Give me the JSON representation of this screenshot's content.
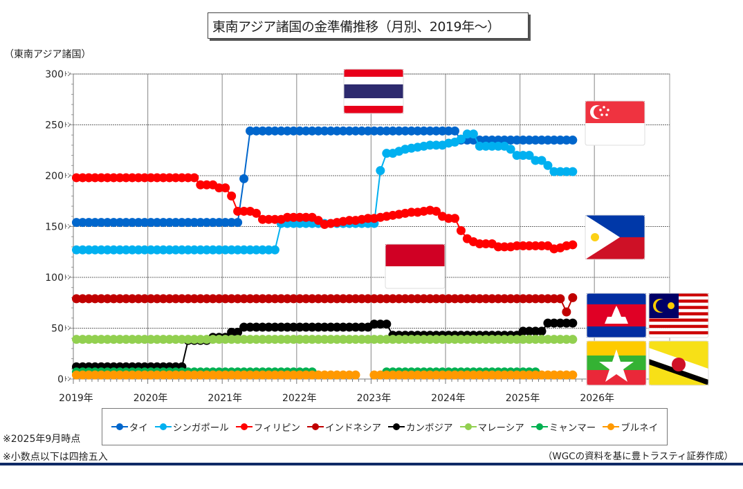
{
  "chart_data": {
    "type": "line",
    "title": "東南アジア諸国の金準備推移（月別、2019年～）",
    "ylabel": "（東南アジア諸国）",
    "y_unit": "ﾄﾝ",
    "ylim": [
      0,
      300
    ],
    "yticks": [
      "0",
      "50",
      "100",
      "150",
      "200",
      "250",
      "300"
    ],
    "xlim": [
      "2019-01",
      "2027-01"
    ],
    "xticks": [
      "2019年",
      "2020年",
      "2021年",
      "2022年",
      "2023年",
      "2024年",
      "2025年",
      "2026年"
    ],
    "x_start": "2019-01",
    "x_end": "2025-09",
    "x_frequency": "monthly",
    "grid": true,
    "legend_placement": "bottom",
    "series": [
      {
        "name": "タイ",
        "color": "#0066cc",
        "values": [
          154,
          154,
          154,
          154,
          154,
          154,
          154,
          154,
          154,
          154,
          154,
          154,
          154,
          154,
          154,
          154,
          154,
          154,
          154,
          154,
          154,
          154,
          154,
          154,
          154,
          154,
          154,
          197,
          244,
          244,
          244,
          244,
          244,
          244,
          244,
          244,
          244,
          244,
          244,
          244,
          244,
          244,
          244,
          244,
          244,
          244,
          244,
          244,
          244,
          244,
          244,
          244,
          244,
          244,
          244,
          244,
          244,
          244,
          244,
          244,
          244,
          244,
          235,
          235,
          235,
          235,
          235,
          235,
          235,
          235,
          235,
          235,
          235,
          235,
          235,
          235,
          235,
          235,
          235,
          235,
          235
        ]
      },
      {
        "name": "シンガポール",
        "color": "#00b0f0",
        "values": [
          127,
          127,
          127,
          127,
          127,
          127,
          127,
          127,
          127,
          127,
          127,
          127,
          127,
          127,
          127,
          127,
          127,
          127,
          127,
          127,
          127,
          127,
          127,
          127,
          127,
          127,
          127,
          127,
          127,
          127,
          127,
          127,
          127,
          153,
          153,
          153,
          153,
          153,
          153,
          153,
          153,
          153,
          153,
          153,
          153,
          153,
          153,
          153,
          153,
          205,
          222,
          222,
          224,
          226,
          227,
          228,
          229,
          230,
          230,
          230,
          232,
          233,
          236,
          241,
          241,
          229,
          229,
          229,
          229,
          229,
          226,
          220,
          220,
          220,
          215,
          215,
          210,
          204,
          204,
          204,
          204
        ]
      },
      {
        "name": "フィリピン",
        "color": "#ff0000",
        "values": [
          198,
          198,
          198,
          198,
          198,
          198,
          198,
          198,
          198,
          198,
          198,
          198,
          198,
          198,
          198,
          198,
          198,
          198,
          198,
          198,
          191,
          191,
          191,
          188,
          188,
          180,
          165,
          165,
          165,
          163,
          157,
          157,
          157,
          157,
          159,
          159,
          159,
          159,
          159,
          156,
          152,
          153,
          154,
          155,
          156,
          156,
          157,
          158,
          158,
          159,
          160,
          161,
          162,
          163,
          164,
          164,
          165,
          166,
          165,
          160,
          158,
          158,
          146,
          138,
          135,
          133,
          133,
          133,
          130,
          130,
          130,
          131,
          131,
          131,
          131,
          131,
          131,
          128,
          129,
          131,
          132
        ]
      },
      {
        "name": "インドネシア",
        "color": "#c00000",
        "values": [
          79,
          79,
          79,
          79,
          79,
          79,
          79,
          79,
          79,
          79,
          79,
          79,
          79,
          79,
          79,
          79,
          79,
          79,
          79,
          79,
          79,
          79,
          79,
          79,
          79,
          79,
          79,
          79,
          79,
          79,
          79,
          79,
          79,
          79,
          79,
          79,
          79,
          79,
          79,
          79,
          79,
          79,
          79,
          79,
          79,
          79,
          79,
          79,
          79,
          79,
          79,
          79,
          79,
          79,
          79,
          79,
          79,
          79,
          79,
          79,
          79,
          79,
          79,
          79,
          79,
          79,
          79,
          79,
          79,
          79,
          79,
          79,
          79,
          79,
          79,
          79,
          79,
          79,
          79,
          66,
          80
        ]
      },
      {
        "name": "カンボジア",
        "color": "#000000",
        "values": [
          12,
          12,
          12,
          12,
          12,
          12,
          12,
          12,
          12,
          12,
          12,
          12,
          12,
          12,
          12,
          12,
          12,
          12,
          38,
          38,
          38,
          38,
          41,
          41,
          41,
          46,
          46,
          51,
          51,
          51,
          51,
          51,
          51,
          51,
          51,
          51,
          51,
          51,
          51,
          51,
          51,
          51,
          51,
          51,
          51,
          51,
          51,
          51,
          54,
          54,
          54,
          43,
          43,
          43,
          43,
          43,
          43,
          43,
          43,
          43,
          43,
          43,
          43,
          43,
          43,
          43,
          43,
          43,
          43,
          43,
          43,
          43,
          47,
          47,
          47,
          47,
          55,
          55,
          55,
          55,
          55
        ]
      },
      {
        "name": "マレーシア",
        "color": "#92d050",
        "values": [
          39,
          39,
          39,
          39,
          39,
          39,
          39,
          39,
          39,
          39,
          39,
          39,
          39,
          39,
          39,
          39,
          39,
          39,
          39,
          39,
          39,
          39,
          39,
          39,
          39,
          39,
          39,
          39,
          39,
          39,
          39,
          39,
          39,
          39,
          39,
          39,
          39,
          39,
          39,
          39,
          39,
          39,
          39,
          39,
          39,
          39,
          39,
          39,
          39,
          39,
          39,
          39,
          39,
          39,
          39,
          39,
          39,
          39,
          39,
          39,
          39,
          39,
          39,
          39,
          39,
          39,
          39,
          39,
          39,
          39,
          39,
          39,
          39,
          39,
          39,
          39,
          39,
          39,
          39,
          39,
          39
        ]
      },
      {
        "name": "ミャンマー",
        "color": "#00b050",
        "values": [
          7,
          7,
          7,
          7,
          7,
          7,
          7,
          7,
          7,
          7,
          7,
          7,
          7,
          7,
          7,
          7,
          7,
          7,
          7,
          7,
          7,
          7,
          7,
          7,
          7,
          7,
          7,
          7,
          7,
          7,
          7,
          7,
          7,
          7,
          7,
          7,
          7,
          7,
          7,
          null,
          null,
          null,
          null,
          null,
          null,
          null,
          null,
          null,
          null,
          null,
          7,
          7,
          7,
          7,
          7,
          7,
          7,
          7,
          7,
          7,
          7,
          7,
          7,
          7,
          7,
          7,
          7,
          7,
          7,
          7,
          7,
          7,
          7,
          7,
          7,
          null,
          null,
          null,
          null,
          null,
          null
        ]
      },
      {
        "name": "ブルネイ",
        "color": "#ff9900",
        "values": [
          4,
          4,
          4,
          4,
          4,
          4,
          4,
          4,
          4,
          4,
          4,
          4,
          4,
          4,
          4,
          4,
          4,
          4,
          4,
          4,
          4,
          4,
          4,
          4,
          4,
          4,
          4,
          4,
          4,
          4,
          4,
          4,
          4,
          4,
          4,
          4,
          4,
          4,
          4,
          4,
          4,
          4,
          4,
          4,
          4,
          4,
          null,
          null,
          4,
          4,
          4,
          4,
          4,
          4,
          4,
          4,
          4,
          4,
          4,
          4,
          4,
          4,
          4,
          4,
          4,
          4,
          4,
          4,
          4,
          4,
          4,
          4,
          4,
          4,
          4,
          4,
          4,
          4,
          4,
          4,
          4
        ]
      }
    ],
    "annotations": [
      "タイ国旗",
      "シンガポール国旗",
      "フィリピン国旗",
      "インドネシア国旗",
      "カンボジア国旗",
      "マレーシア国旗",
      "ミャンマー国旗",
      "ブルネイ国旗"
    ]
  },
  "notes": [
    "※2025年9月時点",
    "※小数点以下は四捨五入"
  ],
  "source": "（WGCの資料を基に豊トラスティ証券作成）"
}
